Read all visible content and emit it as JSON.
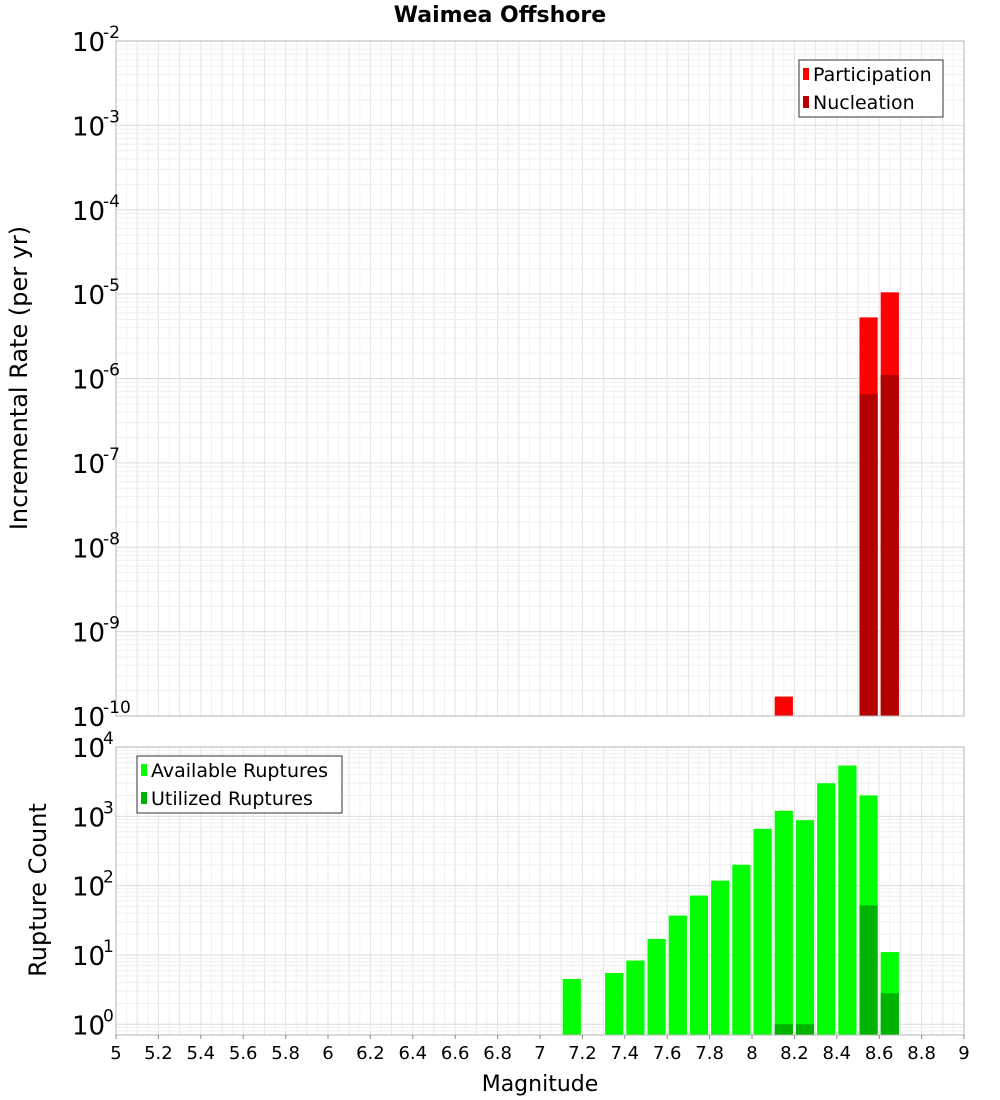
{
  "chart_data": [
    {
      "type": "bar",
      "title": "Waimea Offshore",
      "ylabel": "Incremental Rate (per yr)",
      "yscale": "log",
      "ylim": [
        1e-10,
        0.01
      ],
      "xlim": [
        5,
        9
      ],
      "bin_width": 0.1,
      "legend_position": "top-right",
      "ytick_exponents": [
        "-10",
        "-9",
        "-8",
        "-7",
        "-6",
        "-5",
        "-4",
        "-3",
        "-2"
      ],
      "series": [
        {
          "name": "Participation",
          "color": "#ff0000",
          "x": [
            8.15,
            8.55,
            8.65
          ],
          "values": [
            1.7e-10,
            5.3e-06,
            1.05e-05
          ]
        },
        {
          "name": "Nucleation",
          "color": "#b30000",
          "x": [
            8.55,
            8.65
          ],
          "values": [
            6.5e-07,
            1.1e-06
          ]
        }
      ]
    },
    {
      "type": "bar",
      "ylabel": "Rupture Count",
      "xlabel": "Magnitude",
      "yscale": "log",
      "ylim": [
        0.7,
        10000
      ],
      "xlim": [
        5,
        9
      ],
      "bin_width": 0.1,
      "legend_position": "top-left",
      "ytick_exponents": [
        "0",
        "1",
        "2",
        "3",
        "4"
      ],
      "xtick_labels": [
        "5",
        "5.2",
        "5.4",
        "5.6",
        "5.8",
        "6",
        "6.2",
        "6.4",
        "6.6",
        "6.8",
        "7",
        "7.2",
        "7.4",
        "7.6",
        "7.8",
        "8",
        "8.2",
        "8.4",
        "8.6",
        "8.8",
        "9"
      ],
      "series": [
        {
          "name": "Available Ruptures",
          "color": "#00ff00",
          "x": [
            7.15,
            7.35,
            7.45,
            7.55,
            7.65,
            7.75,
            7.85,
            7.95,
            8.05,
            8.15,
            8.25,
            8.35,
            8.45,
            8.55,
            8.65
          ],
          "values": [
            4.5,
            5.5,
            8.3,
            17,
            37,
            72,
            118,
            200,
            660,
            1200,
            880,
            3000,
            5400,
            2000,
            11
          ]
        },
        {
          "name": "Utilized Ruptures",
          "color": "#00b300",
          "x": [
            8.15,
            8.25,
            8.55,
            8.65
          ],
          "values": [
            1,
            1,
            52,
            2.8
          ]
        }
      ]
    }
  ]
}
